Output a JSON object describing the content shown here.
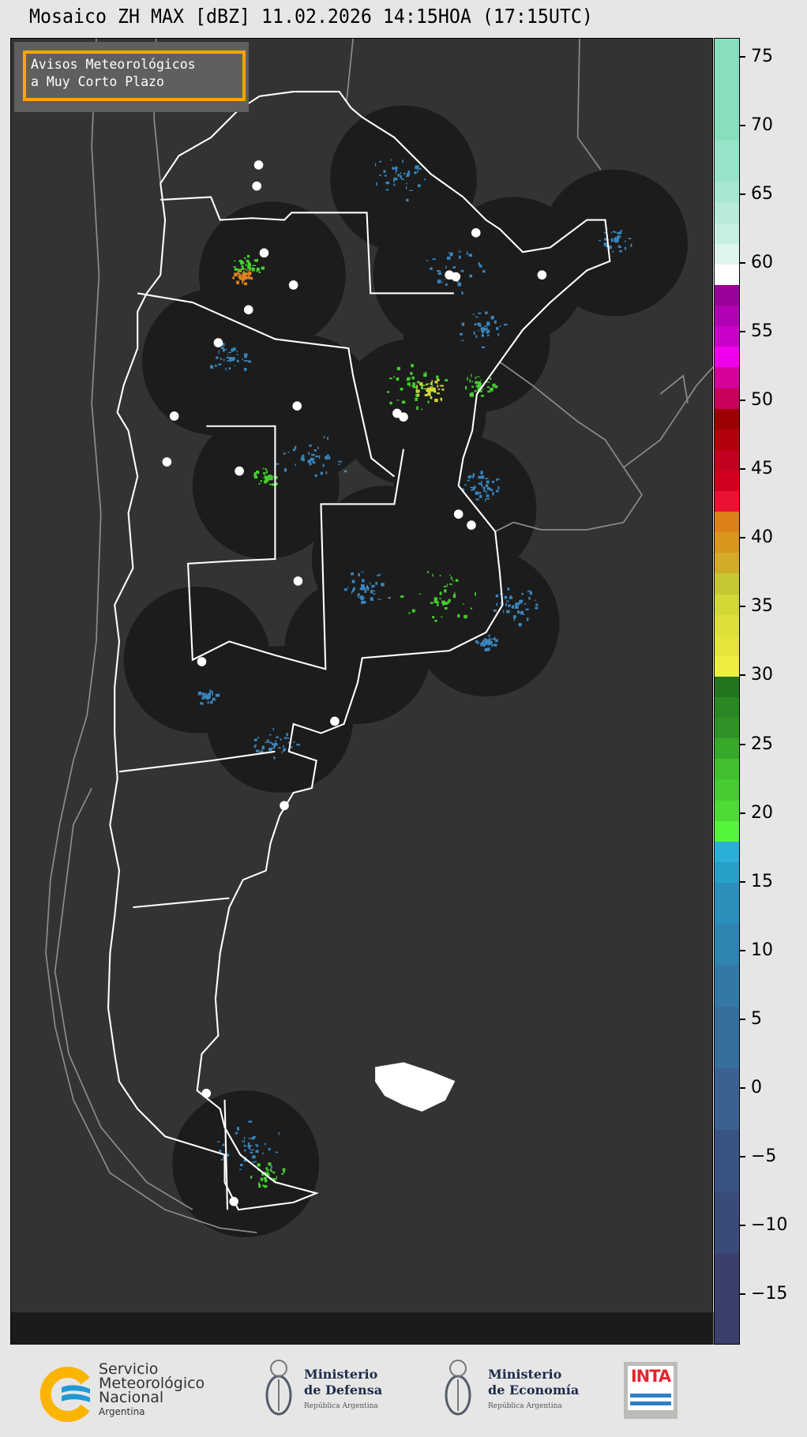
{
  "title": "Mosaico ZH MAX [dBZ] 11.02.2026 14:15HOA (17:15UTC)",
  "legend_box": {
    "line1": "Avisos Meteorológicos",
    "line2": "a Muy Corto Plazo",
    "border_color": "#ffa500"
  },
  "colorbar": {
    "unit": "dBZ",
    "range": [
      -18.7,
      76.4
    ],
    "ticks": [
      "75",
      "70",
      "65",
      "60",
      "55",
      "50",
      "45",
      "40",
      "35",
      "30",
      "25",
      "20",
      "15",
      "10",
      "5",
      "0",
      "−5",
      "−10",
      "−15"
    ],
    "tick_values": [
      75,
      70,
      65,
      60,
      55,
      50,
      45,
      40,
      35,
      30,
      25,
      20,
      15,
      10,
      5,
      0,
      -5,
      -10,
      -15
    ],
    "bands": [
      {
        "from": -18.7,
        "to": -12,
        "color": "#3b3f6b"
      },
      {
        "from": -12,
        "to": -7.5,
        "color": "#3b4b78"
      },
      {
        "from": -7.5,
        "to": -3,
        "color": "#3a5481"
      },
      {
        "from": -3,
        "to": 1.5,
        "color": "#3a6190"
      },
      {
        "from": 1.5,
        "to": 6,
        "color": "#386e9c"
      },
      {
        "from": 6,
        "to": 9,
        "color": "#3479a6"
      },
      {
        "from": 9,
        "to": 12,
        "color": "#2f84b0"
      },
      {
        "from": 12,
        "to": 15,
        "color": "#2a90bb"
      },
      {
        "from": 15,
        "to": 16.5,
        "color": "#27a0c8"
      },
      {
        "from": 16.5,
        "to": 18,
        "color": "#2ab0d8"
      },
      {
        "from": 18,
        "to": 19.5,
        "color": "#55f53c"
      },
      {
        "from": 19.5,
        "to": 21,
        "color": "#4cdc34"
      },
      {
        "from": 21,
        "to": 22.5,
        "color": "#46cc30"
      },
      {
        "from": 22.5,
        "to": 24,
        "color": "#42bf2d"
      },
      {
        "from": 24,
        "to": 25.5,
        "color": "#38a82a"
      },
      {
        "from": 25.5,
        "to": 27,
        "color": "#2f9226"
      },
      {
        "from": 27,
        "to": 28.5,
        "color": "#2b8724"
      },
      {
        "from": 28.5,
        "to": 30,
        "color": "#23731f"
      },
      {
        "from": 30,
        "to": 31.5,
        "color": "#eeee3e"
      },
      {
        "from": 31.5,
        "to": 33,
        "color": "#e4e43a"
      },
      {
        "from": 33,
        "to": 34.5,
        "color": "#dce038"
      },
      {
        "from": 34.5,
        "to": 36,
        "color": "#d2d836"
      },
      {
        "from": 36,
        "to": 37.5,
        "color": "#c6c832"
      },
      {
        "from": 37.5,
        "to": 39,
        "color": "#d2ac26"
      },
      {
        "from": 39,
        "to": 40.5,
        "color": "#d8961c"
      },
      {
        "from": 40.5,
        "to": 42,
        "color": "#de801a"
      },
      {
        "from": 42,
        "to": 43.5,
        "color": "#ec1032"
      },
      {
        "from": 43.5,
        "to": 45,
        "color": "#d00020"
      },
      {
        "from": 45,
        "to": 46.5,
        "color": "#c20020"
      },
      {
        "from": 46.5,
        "to": 48,
        "color": "#b4000c"
      },
      {
        "from": 48,
        "to": 49.5,
        "color": "#9c0000"
      },
      {
        "from": 49.5,
        "to": 51,
        "color": "#c8005c"
      },
      {
        "from": 51,
        "to": 52.5,
        "color": "#d6009a"
      },
      {
        "from": 52.5,
        "to": 54,
        "color": "#ee00ee"
      },
      {
        "from": 54,
        "to": 55.5,
        "color": "#ca00ca"
      },
      {
        "from": 55.5,
        "to": 57,
        "color": "#b200b4"
      },
      {
        "from": 57,
        "to": 58.5,
        "color": "#9a009c"
      },
      {
        "from": 58.5,
        "to": 60,
        "color": "#ffffff"
      },
      {
        "from": 60,
        "to": 61.5,
        "color": "#def6ec"
      },
      {
        "from": 61.5,
        "to": 63,
        "color": "#c8f0e0"
      },
      {
        "from": 63,
        "to": 64.5,
        "color": "#b8ecd8"
      },
      {
        "from": 64.5,
        "to": 66,
        "color": "#a8e8d0"
      },
      {
        "from": 66,
        "to": 69,
        "color": "#98e4c8"
      },
      {
        "from": 69,
        "to": 76.4,
        "color": "#88dfbe"
      }
    ]
  },
  "map_colors": {
    "background": "#333333",
    "radar_coverage": "#1c1c1c",
    "country_border": "#ffffff",
    "neighbor_border": "#8a8a8a"
  },
  "footer": {
    "smn": {
      "line1": "Servicio",
      "line2": "Meteorológico",
      "line3": "Nacional",
      "line4": "Argentina"
    },
    "defensa": {
      "line1": "Ministerio",
      "line2": "de Defensa",
      "line3": "República Argentina"
    },
    "economia": {
      "line1": "Ministerio",
      "line2": "de Economía",
      "line3": "República Argentina"
    },
    "inta": {
      "label": "INTA"
    }
  }
}
